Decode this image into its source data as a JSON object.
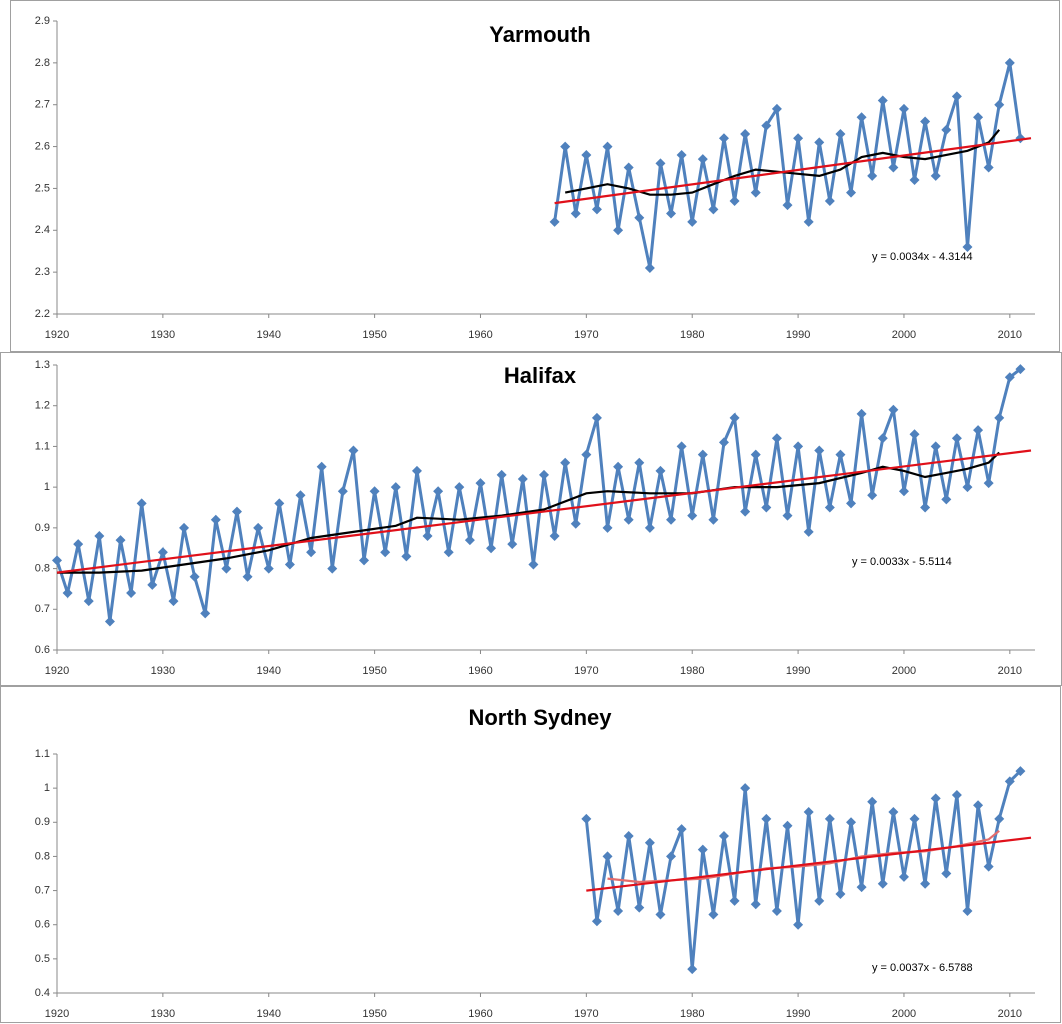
{
  "chart_data": [
    {
      "type": "line",
      "title": "Yarmouth",
      "annotation": "y = 0.0034x - 4.3144",
      "xlim": [
        1920,
        2012
      ],
      "xticks": [
        1920,
        1930,
        1940,
        1950,
        1960,
        1970,
        1980,
        1990,
        2000,
        2010
      ],
      "ylim": [
        2.2,
        2.9
      ],
      "yticks": [
        2.2,
        2.3,
        2.4,
        2.5,
        2.6,
        2.7,
        2.8,
        2.9
      ],
      "series": [
        {
          "color": "#4f81bd",
          "marker": "diamond",
          "x": [
            1967,
            1968,
            1969,
            1970,
            1971,
            1972,
            1973,
            1974,
            1975,
            1976,
            1977,
            1978,
            1979,
            1980,
            1981,
            1982,
            1983,
            1984,
            1985,
            1986,
            1987,
            1988,
            1989,
            1990,
            1991,
            1992,
            1993,
            1994,
            1995,
            1996,
            1997,
            1998,
            1999,
            2000,
            2001,
            2002,
            2003,
            2004,
            2005,
            2006,
            2007,
            2008,
            2009,
            2010,
            2011
          ],
          "values": [
            2.42,
            2.6,
            2.44,
            2.58,
            2.45,
            2.6,
            2.4,
            2.55,
            2.43,
            2.31,
            2.56,
            2.44,
            2.58,
            2.42,
            2.57,
            2.45,
            2.62,
            2.47,
            2.63,
            2.49,
            2.65,
            2.69,
            2.46,
            2.62,
            2.42,
            2.61,
            2.47,
            2.63,
            2.49,
            2.67,
            2.53,
            2.71,
            2.55,
            2.69,
            2.52,
            2.66,
            2.53,
            2.64,
            2.72,
            2.36,
            2.67,
            2.55,
            2.7,
            2.8,
            2.62
          ]
        },
        {
          "color": "#000000",
          "marker": "none",
          "x": [
            1968,
            1970,
            1972,
            1974,
            1976,
            1978,
            1980,
            1982,
            1984,
            1986,
            1988,
            1990,
            1992,
            1994,
            1996,
            1998,
            2000,
            2002,
            2004,
            2006,
            2008,
            2009
          ],
          "values": [
            2.49,
            2.5,
            2.51,
            2.5,
            2.485,
            2.485,
            2.49,
            2.51,
            2.53,
            2.545,
            2.54,
            2.535,
            2.53,
            2.545,
            2.575,
            2.585,
            2.575,
            2.57,
            2.58,
            2.59,
            2.61,
            2.64
          ]
        },
        {
          "color": "#e0101a",
          "marker": "none",
          "x": [
            1967,
            2012
          ],
          "values": [
            2.465,
            2.62
          ]
        }
      ]
    },
    {
      "type": "line",
      "title": "Halifax",
      "annotation": "y = 0.0033x - 5.5114",
      "xlim": [
        1920,
        2012
      ],
      "xticks": [
        1920,
        1930,
        1940,
        1950,
        1960,
        1970,
        1980,
        1990,
        2000,
        2010
      ],
      "ylim": [
        0.6,
        1.3
      ],
      "yticks": [
        0.6,
        0.7,
        0.8,
        0.9,
        1,
        1.1,
        1.2,
        1.3
      ],
      "series": [
        {
          "color": "#4f81bd",
          "marker": "diamond",
          "x": [
            1920,
            1921,
            1922,
            1923,
            1924,
            1925,
            1926,
            1927,
            1928,
            1929,
            1930,
            1931,
            1932,
            1933,
            1934,
            1935,
            1936,
            1937,
            1938,
            1939,
            1940,
            1941,
            1942,
            1943,
            1944,
            1945,
            1946,
            1947,
            1948,
            1949,
            1950,
            1951,
            1952,
            1953,
            1954,
            1955,
            1956,
            1957,
            1958,
            1959,
            1960,
            1961,
            1962,
            1963,
            1964,
            1965,
            1966,
            1967,
            1968,
            1969,
            1970,
            1971,
            1972,
            1973,
            1974,
            1975,
            1976,
            1977,
            1978,
            1979,
            1980,
            1981,
            1982,
            1983,
            1984,
            1985,
            1986,
            1987,
            1988,
            1989,
            1990,
            1991,
            1992,
            1993,
            1994,
            1995,
            1996,
            1997,
            1998,
            1999,
            2000,
            2001,
            2002,
            2003,
            2004,
            2005,
            2006,
            2007,
            2008,
            2009,
            2010,
            2011
          ],
          "values": [
            0.82,
            0.74,
            0.86,
            0.72,
            0.88,
            0.67,
            0.87,
            0.74,
            0.96,
            0.76,
            0.84,
            0.72,
            0.9,
            0.78,
            0.69,
            0.92,
            0.8,
            0.94,
            0.78,
            0.9,
            0.8,
            0.96,
            0.81,
            0.98,
            0.84,
            1.05,
            0.8,
            0.99,
            1.09,
            0.82,
            0.99,
            0.84,
            1.0,
            0.83,
            1.04,
            0.88,
            0.99,
            0.84,
            1.0,
            0.87,
            1.01,
            0.85,
            1.03,
            0.86,
            1.02,
            0.81,
            1.03,
            0.88,
            1.06,
            0.91,
            1.08,
            1.17,
            0.9,
            1.05,
            0.92,
            1.06,
            0.9,
            1.04,
            0.92,
            1.1,
            0.93,
            1.08,
            0.92,
            1.11,
            1.17,
            0.94,
            1.08,
            0.95,
            1.12,
            0.93,
            1.1,
            0.89,
            1.09,
            0.95,
            1.08,
            0.96,
            1.18,
            0.98,
            1.12,
            1.19,
            0.99,
            1.13,
            0.95,
            1.1,
            0.97,
            1.12,
            1.0,
            1.14,
            1.01,
            1.17,
            1.27,
            1.29
          ]
        },
        {
          "color": "#000000",
          "marker": "none",
          "x": [
            1920,
            1924,
            1928,
            1932,
            1936,
            1940,
            1944,
            1948,
            1952,
            1954,
            1958,
            1962,
            1966,
            1970,
            1972,
            1976,
            1980,
            1984,
            1988,
            1992,
            1996,
            1998,
            2000,
            2002,
            2004,
            2006,
            2008,
            2009
          ],
          "values": [
            0.79,
            0.79,
            0.795,
            0.81,
            0.825,
            0.845,
            0.875,
            0.89,
            0.905,
            0.925,
            0.92,
            0.93,
            0.945,
            0.985,
            0.99,
            0.985,
            0.985,
            1.0,
            1.0,
            1.01,
            1.035,
            1.05,
            1.04,
            1.025,
            1.035,
            1.045,
            1.06,
            1.085
          ]
        },
        {
          "color": "#e0101a",
          "marker": "none",
          "x": [
            1920,
            2012
          ],
          "values": [
            0.79,
            1.09
          ]
        }
      ]
    },
    {
      "type": "line",
      "title": "North Sydney",
      "annotation": "y = 0.0037x - 6.5788",
      "xlim": [
        1920,
        2012
      ],
      "xticks": [
        1920,
        1930,
        1940,
        1950,
        1960,
        1970,
        1980,
        1990,
        2000,
        2010
      ],
      "ylim": [
        0.4,
        1.1
      ],
      "yticks": [
        0.4,
        0.5,
        0.6,
        0.7,
        0.8,
        0.9,
        1,
        1.1
      ],
      "series": [
        {
          "color": "#4f81bd",
          "marker": "diamond",
          "x": [
            1970,
            1971,
            1972,
            1973,
            1974,
            1975,
            1976,
            1977,
            1978,
            1979,
            1980,
            1981,
            1982,
            1983,
            1984,
            1985,
            1986,
            1987,
            1988,
            1989,
            1990,
            1991,
            1992,
            1993,
            1994,
            1995,
            1996,
            1997,
            1998,
            1999,
            2000,
            2001,
            2002,
            2003,
            2004,
            2005,
            2006,
            2007,
            2008,
            2009,
            2010,
            2011
          ],
          "values": [
            0.91,
            0.61,
            0.8,
            0.64,
            0.86,
            0.65,
            0.84,
            0.63,
            0.8,
            0.88,
            0.47,
            0.82,
            0.63,
            0.86,
            0.67,
            1.0,
            0.66,
            0.91,
            0.64,
            0.89,
            0.6,
            0.93,
            0.67,
            0.91,
            0.69,
            0.9,
            0.71,
            0.96,
            0.72,
            0.93,
            0.74,
            0.91,
            0.72,
            0.97,
            0.75,
            0.98,
            0.64,
            0.95,
            0.77,
            0.91,
            1.02,
            1.05
          ]
        },
        {
          "color": "#e36c6c",
          "marker": "none",
          "x": [
            1972,
            1975,
            1978,
            1981,
            1984,
            1987,
            1990,
            1993,
            1996,
            1999,
            2002,
            2005,
            2008,
            2009
          ],
          "values": [
            0.735,
            0.725,
            0.73,
            0.735,
            0.75,
            0.765,
            0.77,
            0.78,
            0.8,
            0.81,
            0.815,
            0.83,
            0.85,
            0.875
          ]
        },
        {
          "color": "#e0101a",
          "marker": "none",
          "x": [
            1970,
            2012
          ],
          "values": [
            0.7,
            0.855
          ]
        }
      ]
    }
  ]
}
